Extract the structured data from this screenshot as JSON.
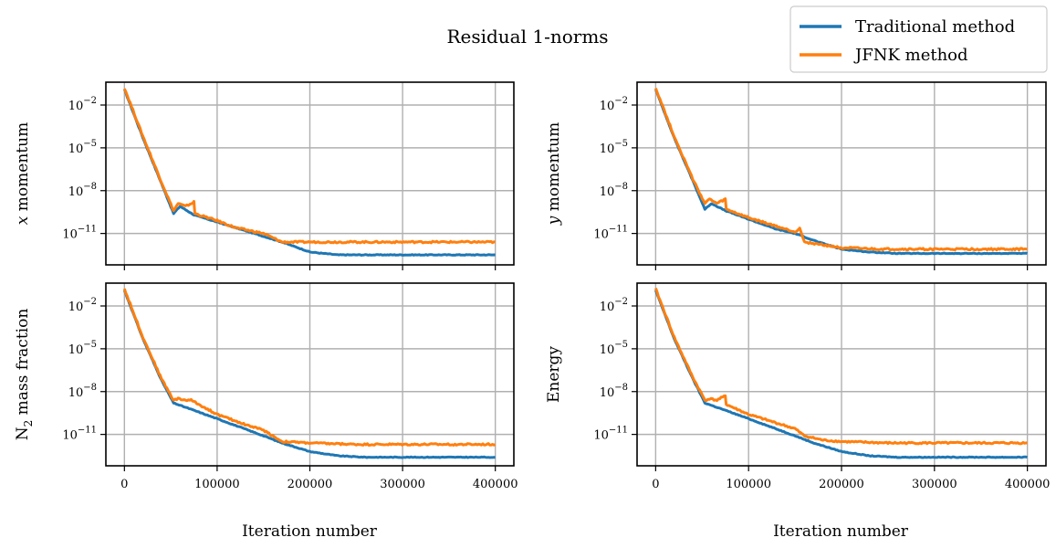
{
  "chart_data": {
    "title": "Residual 1-norms",
    "legend": {
      "placement": "top-right",
      "entries": [
        {
          "name": "Traditional method",
          "color": "#1f77b4"
        },
        {
          "name": "JFNK method",
          "color": "#ff7f0e"
        }
      ]
    },
    "x_axis": {
      "label": "Iteration number",
      "range": [
        -20000,
        420000
      ],
      "ticks": [
        0,
        100000,
        200000,
        300000,
        400000
      ],
      "tick_labels": [
        "0",
        "100000",
        "200000",
        "300000",
        "400000"
      ]
    },
    "y_axis": {
      "scale": "log",
      "range_log10": [
        -13.2,
        -0.4
      ],
      "ticks_log10": [
        -2,
        -5,
        -8,
        -11
      ],
      "tick_labels": [
        "10−2",
        "10−5",
        "10−8",
        "10−11"
      ]
    },
    "grid": true,
    "charts": [
      {
        "type": "line",
        "ylabel_var": "x",
        "ylabel_rest": " momentum",
        "series": [
          {
            "name": "Traditional method",
            "color": "#1f77b4",
            "x": [
              0,
              20000,
              40000,
              53000,
              60000,
              75000,
              100000,
              130000,
              150000,
              170000,
              200000,
              230000,
              260000,
              300000,
              400000
            ],
            "log10_y": [
              -0.9,
              -4.3,
              -7.5,
              -9.6,
              -9.1,
              -9.7,
              -10.2,
              -10.8,
              -11.2,
              -11.6,
              -12.3,
              -12.5,
              -12.5,
              -12.5,
              -12.5
            ]
          },
          {
            "name": "JFNK method",
            "color": "#ff7f0e",
            "x": [
              0,
              20000,
              40000,
              53000,
              58000,
              66000,
              75000,
              76000,
              90000,
              100000,
              120000,
              150000,
              160000,
              170000,
              200000,
              400000
            ],
            "log10_y": [
              -0.8,
              -4.2,
              -7.4,
              -9.4,
              -8.9,
              -9.1,
              -8.8,
              -9.6,
              -9.9,
              -10.1,
              -10.6,
              -11.0,
              -11.3,
              -11.6,
              -11.6,
              -11.6
            ]
          }
        ]
      },
      {
        "type": "line",
        "ylabel_var": "y",
        "ylabel_rest": " momentum",
        "series": [
          {
            "name": "Traditional method",
            "color": "#1f77b4",
            "x": [
              0,
              20000,
              40000,
              53000,
              60000,
              75000,
              100000,
              130000,
              150000,
              175000,
              200000,
              230000,
              260000,
              300000,
              400000
            ],
            "log10_y": [
              -0.9,
              -4.3,
              -7.3,
              -9.3,
              -8.9,
              -9.4,
              -10.0,
              -10.7,
              -11.0,
              -11.6,
              -12.1,
              -12.3,
              -12.4,
              -12.4,
              -12.4
            ]
          },
          {
            "name": "JFNK method",
            "color": "#ff7f0e",
            "x": [
              0,
              20000,
              40000,
              53000,
              58000,
              66000,
              75000,
              76000,
              100000,
              130000,
              150000,
              155000,
              160000,
              180000,
              200000,
              240000,
              400000
            ],
            "log10_y": [
              -0.8,
              -4.2,
              -7.2,
              -8.9,
              -8.6,
              -8.9,
              -8.6,
              -9.3,
              -9.9,
              -10.5,
              -10.9,
              -10.6,
              -11.6,
              -11.8,
              -12.0,
              -12.1,
              -12.1
            ]
          }
        ]
      },
      {
        "type": "line",
        "ylabel_n2": "N",
        "ylabel_sub": "2",
        "ylabel_rest": " mass fraction",
        "series": [
          {
            "name": "Traditional method",
            "color": "#1f77b4",
            "x": [
              0,
              20000,
              40000,
              53000,
              100000,
              150000,
              170000,
              200000,
              230000,
              260000,
              300000,
              400000
            ],
            "log10_y": [
              -0.9,
              -4.3,
              -7.2,
              -8.8,
              -9.9,
              -11.1,
              -11.6,
              -12.2,
              -12.5,
              -12.6,
              -12.6,
              -12.6
            ]
          },
          {
            "name": "JFNK method",
            "color": "#ff7f0e",
            "x": [
              0,
              20000,
              40000,
              53000,
              58000,
              66000,
              72000,
              100000,
              130000,
              150000,
              160000,
              170000,
              200000,
              250000,
              400000
            ],
            "log10_y": [
              -0.8,
              -4.2,
              -7.1,
              -8.6,
              -8.5,
              -8.6,
              -8.6,
              -9.6,
              -10.3,
              -10.7,
              -11.1,
              -11.5,
              -11.6,
              -11.7,
              -11.7
            ]
          }
        ]
      },
      {
        "type": "line",
        "ylabel_var": "",
        "ylabel_rest": "Energy",
        "series": [
          {
            "name": "Traditional method",
            "color": "#1f77b4",
            "x": [
              0,
              20000,
              40000,
              53000,
              100000,
              150000,
              170000,
              200000,
              230000,
              260000,
              300000,
              400000
            ],
            "log10_y": [
              -0.9,
              -4.3,
              -7.1,
              -8.8,
              -9.9,
              -11.1,
              -11.6,
              -12.2,
              -12.5,
              -12.6,
              -12.6,
              -12.6
            ]
          },
          {
            "name": "JFNK method",
            "color": "#ff7f0e",
            "x": [
              0,
              20000,
              40000,
              53000,
              58000,
              66000,
              75000,
              76000,
              100000,
              150000,
              160000,
              180000,
              200000,
              250000,
              400000
            ],
            "log10_y": [
              -0.8,
              -4.2,
              -7.0,
              -8.6,
              -8.5,
              -8.6,
              -8.3,
              -8.9,
              -9.6,
              -10.6,
              -11.1,
              -11.4,
              -11.5,
              -11.6,
              -11.6
            ]
          }
        ]
      }
    ]
  }
}
